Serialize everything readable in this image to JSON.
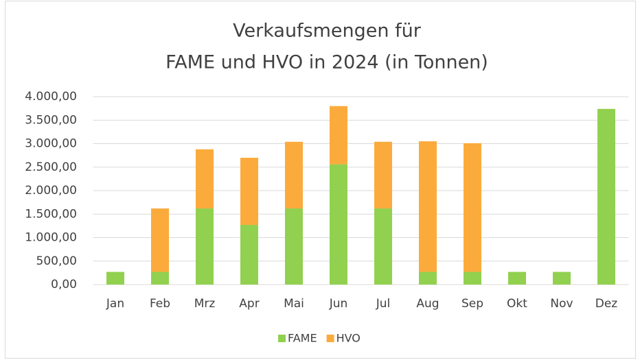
{
  "chart_data": {
    "type": "stacked_bar",
    "title": [
      "Verkaufsmengen für",
      "FAME und HVO in 2024 (in Tonnen)"
    ],
    "categories": [
      "Jan",
      "Feb",
      "Mrz",
      "Apr",
      "Mai",
      "Jun",
      "Jul",
      "Aug",
      "Sep",
      "Okt",
      "Nov",
      "Dez"
    ],
    "series": [
      {
        "name": "FAME",
        "color": "#92d050",
        "values": [
          270,
          270,
          1620,
          1270,
          1620,
          2560,
          1620,
          270,
          270,
          270,
          270,
          3740
        ]
      },
      {
        "name": "HVO",
        "color": "#fbab3c",
        "values": [
          0,
          1350,
          1260,
          1430,
          1420,
          1240,
          1420,
          2780,
          2740,
          0,
          0,
          0
        ]
      }
    ],
    "ylim": [
      0,
      4000
    ],
    "yticks": [
      {
        "value": 0,
        "label": "0,00"
      },
      {
        "value": 500,
        "label": "500,00"
      },
      {
        "value": 1000,
        "label": "1.000,00"
      },
      {
        "value": 1500,
        "label": "1.500,00"
      },
      {
        "value": 2000,
        "label": "2.000,00"
      },
      {
        "value": 2500,
        "label": "2.500,00"
      },
      {
        "value": 3000,
        "label": "3.000,00"
      },
      {
        "value": 3500,
        "label": "3.500,00"
      },
      {
        "value": 4000,
        "label": "4.000,00"
      }
    ],
    "grid": true,
    "legend": "bottom"
  }
}
